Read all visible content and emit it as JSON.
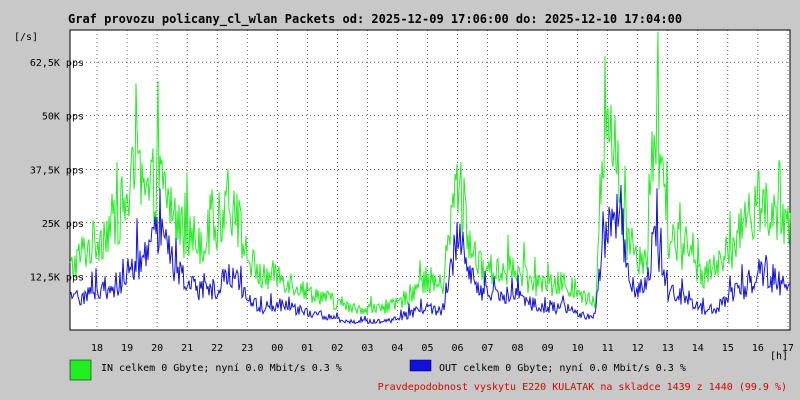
{
  "chart_data": {
    "type": "line",
    "title": "Graf provozu policany_cl_wlan Packets od: 2025-12-09 17:06:00 do: 2025-12-10 17:04:00",
    "ylabel": "[/s]",
    "xlabel": "[h]",
    "ylim": [
      0,
      70000
    ],
    "grid": true,
    "y_ticks": [
      {
        "value": 12500,
        "label": "12,5K pps"
      },
      {
        "value": 25000,
        "label": "25K pps"
      },
      {
        "value": 37500,
        "label": "37,5K pps"
      },
      {
        "value": 50000,
        "label": "50K pps"
      },
      {
        "value": 62500,
        "label": "62,5K pps"
      }
    ],
    "x_ticks": [
      {
        "hour": 18,
        "label": "18"
      },
      {
        "hour": 19,
        "label": "19"
      },
      {
        "hour": 20,
        "label": "20"
      },
      {
        "hour": 21,
        "label": "21"
      },
      {
        "hour": 22,
        "label": "22"
      },
      {
        "hour": 23,
        "label": "23"
      },
      {
        "hour": 24,
        "label": "00"
      },
      {
        "hour": 25,
        "label": "01"
      },
      {
        "hour": 26,
        "label": "02"
      },
      {
        "hour": 27,
        "label": "03"
      },
      {
        "hour": 28,
        "label": "04"
      },
      {
        "hour": 29,
        "label": "05"
      },
      {
        "hour": 30,
        "label": "06"
      },
      {
        "hour": 31,
        "label": "07"
      },
      {
        "hour": 32,
        "label": "08"
      },
      {
        "hour": 33,
        "label": "09"
      },
      {
        "hour": 34,
        "label": "10"
      },
      {
        "hour": 35,
        "label": "11"
      },
      {
        "hour": 36,
        "label": "12"
      },
      {
        "hour": 37,
        "label": "13"
      },
      {
        "hour": 38,
        "label": "14"
      },
      {
        "hour": 39,
        "label": "15"
      },
      {
        "hour": 40,
        "label": "16"
      },
      {
        "hour": 41,
        "label": "17"
      }
    ],
    "x_range_hours": [
      17.1,
      41.07
    ],
    "series": [
      {
        "name": "IN",
        "color": "#22ee22",
        "points": [
          [
            17.1,
            14000
          ],
          [
            17.5,
            18000
          ],
          [
            18.0,
            21000
          ],
          [
            18.5,
            25000
          ],
          [
            19.0,
            30000
          ],
          [
            19.3,
            38000
          ],
          [
            19.6,
            30000
          ],
          [
            20.0,
            35000
          ],
          [
            20.3,
            32000
          ],
          [
            20.6,
            26000
          ],
          [
            21.0,
            22000
          ],
          [
            21.5,
            21000
          ],
          [
            22.0,
            24000
          ],
          [
            22.3,
            31000
          ],
          [
            22.6,
            28000
          ],
          [
            23.0,
            17000
          ],
          [
            23.5,
            12000
          ],
          [
            24.0,
            13000
          ],
          [
            24.5,
            11000
          ],
          [
            25.0,
            9000
          ],
          [
            25.5,
            8000
          ],
          [
            26.0,
            6000
          ],
          [
            26.5,
            5000
          ],
          [
            27.0,
            5000
          ],
          [
            27.5,
            5000
          ],
          [
            28.0,
            6000
          ],
          [
            28.5,
            9000
          ],
          [
            29.0,
            12000
          ],
          [
            29.5,
            10000
          ],
          [
            30.0,
            36000
          ],
          [
            30.3,
            24000
          ],
          [
            30.6,
            15000
          ],
          [
            31.0,
            14000
          ],
          [
            31.5,
            14000
          ],
          [
            32.0,
            13000
          ],
          [
            32.5,
            11000
          ],
          [
            33.0,
            10000
          ],
          [
            33.5,
            11000
          ],
          [
            34.0,
            8000
          ],
          [
            34.3,
            7000
          ],
          [
            34.6,
            7000
          ],
          [
            34.8,
            38000
          ],
          [
            35.0,
            47000
          ],
          [
            35.2,
            50000
          ],
          [
            35.4,
            30000
          ],
          [
            35.7,
            20000
          ],
          [
            36.0,
            18000
          ],
          [
            36.3,
            17000
          ],
          [
            36.6,
            48000
          ],
          [
            36.8,
            35000
          ],
          [
            37.0,
            22000
          ],
          [
            37.4,
            20000
          ],
          [
            37.8,
            16000
          ],
          [
            38.2,
            13000
          ],
          [
            38.6,
            14000
          ],
          [
            39.0,
            18000
          ],
          [
            39.4,
            22000
          ],
          [
            39.8,
            26000
          ],
          [
            40.1,
            32000
          ],
          [
            40.4,
            28000
          ],
          [
            40.7,
            24000
          ],
          [
            41.07,
            22000
          ]
        ]
      },
      {
        "name": "OUT",
        "color": "#1111dd",
        "points": [
          [
            17.1,
            7000
          ],
          [
            17.5,
            8000
          ],
          [
            18.0,
            9000
          ],
          [
            18.5,
            10000
          ],
          [
            19.0,
            12000
          ],
          [
            19.3,
            16000
          ],
          [
            19.6,
            15000
          ],
          [
            20.0,
            22000
          ],
          [
            20.3,
            20000
          ],
          [
            20.6,
            14000
          ],
          [
            21.0,
            11000
          ],
          [
            21.5,
            9000
          ],
          [
            22.0,
            10000
          ],
          [
            22.3,
            13000
          ],
          [
            22.6,
            12000
          ],
          [
            23.0,
            7000
          ],
          [
            23.5,
            5000
          ],
          [
            24.0,
            6000
          ],
          [
            24.5,
            5000
          ],
          [
            25.0,
            4000
          ],
          [
            25.5,
            3500
          ],
          [
            26.0,
            2500
          ],
          [
            26.5,
            2000
          ],
          [
            27.0,
            2000
          ],
          [
            27.5,
            2000
          ],
          [
            28.0,
            2500
          ],
          [
            28.5,
            4000
          ],
          [
            29.0,
            5000
          ],
          [
            29.5,
            4500
          ],
          [
            30.0,
            23000
          ],
          [
            30.3,
            16000
          ],
          [
            30.6,
            9000
          ],
          [
            31.0,
            8000
          ],
          [
            31.5,
            8500
          ],
          [
            32.0,
            8000
          ],
          [
            32.5,
            6000
          ],
          [
            33.0,
            5000
          ],
          [
            33.5,
            5500
          ],
          [
            34.0,
            4000
          ],
          [
            34.3,
            3000
          ],
          [
            34.6,
            3500
          ],
          [
            34.8,
            20000
          ],
          [
            35.0,
            24000
          ],
          [
            35.2,
            26000
          ],
          [
            35.4,
            30000
          ],
          [
            35.7,
            12000
          ],
          [
            36.0,
            9000
          ],
          [
            36.3,
            10000
          ],
          [
            36.6,
            22000
          ],
          [
            36.8,
            14000
          ],
          [
            37.0,
            9000
          ],
          [
            37.4,
            8000
          ],
          [
            37.8,
            7000
          ],
          [
            38.2,
            4500
          ],
          [
            38.6,
            5000
          ],
          [
            39.0,
            8000
          ],
          [
            39.4,
            9000
          ],
          [
            39.8,
            11000
          ],
          [
            40.1,
            13000
          ],
          [
            40.4,
            12000
          ],
          [
            40.7,
            11000
          ],
          [
            41.07,
            10000
          ]
        ]
      }
    ]
  },
  "legend": {
    "in_color": "#22ee22",
    "out_color": "#1111dd",
    "in_text": "IN celkem 0 Gbyte; nyní   0.0 Mbit/s 0.3 %",
    "out_text": "OUT celkem 0 Gbyte; nyní   0.0 Mbit/s 0.3 %"
  },
  "footer_note": "Pravdepodobnost vyskytu E220 KULATAK na skladce 1439 z 1440 (99.9 %)"
}
